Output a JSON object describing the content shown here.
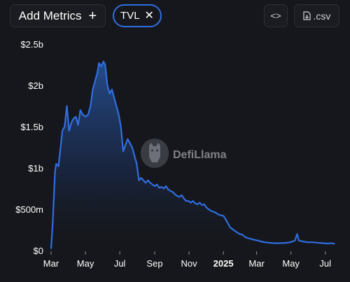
{
  "toolbar": {
    "add_metrics_label": "Add Metrics",
    "add_icon": "plus-icon",
    "chip_label": "TVL",
    "chip_close_icon": "close-icon",
    "embed_icon": "code-icon",
    "csv_label": ".csv",
    "csv_icon": "download-file-icon"
  },
  "watermark": {
    "text": "DefiLlama",
    "icon": "llama-logo"
  },
  "colors": {
    "background": "#16171c",
    "line": "#2f6ee0",
    "chip_border": "#2f6ee0"
  },
  "chart_data": {
    "type": "area",
    "title": "",
    "xlabel": "",
    "ylabel": "",
    "ylim": [
      0,
      2.5
    ],
    "y_unit": "billion USD",
    "y_ticks": [
      0,
      0.5,
      1,
      1.5,
      2,
      2.5
    ],
    "y_tick_labels": [
      "$0",
      "$500m",
      "$1b",
      "$1.5b",
      "$2b",
      "$2.5b"
    ],
    "x_ticks": [
      "2024-03-01",
      "2024-05-01",
      "2024-07-01",
      "2024-09-01",
      "2024-11-01",
      "2025-01-01",
      "2025-03-01",
      "2025-05-01",
      "2025-07-01"
    ],
    "x_tick_labels": [
      "Mar",
      "May",
      "Jul",
      "Sep",
      "Nov",
      "2025",
      "Mar",
      "May",
      "Jul"
    ],
    "x_range": [
      "2024-03-01",
      "2025-07-20"
    ],
    "grid": false,
    "legend": "none",
    "series": [
      {
        "points": [
          [
            "2024-03-01",
            0.02
          ],
          [
            "2024-03-04",
            0.35
          ],
          [
            "2024-03-08",
            0.95
          ],
          [
            "2024-03-10",
            1.05
          ],
          [
            "2024-03-14",
            1.02
          ],
          [
            "2024-03-17",
            1.2
          ],
          [
            "2024-03-21",
            1.45
          ],
          [
            "2024-03-25",
            1.5
          ],
          [
            "2024-03-29",
            1.75
          ],
          [
            "2024-04-02",
            1.45
          ],
          [
            "2024-04-06",
            1.55
          ],
          [
            "2024-04-10",
            1.6
          ],
          [
            "2024-04-14",
            1.62
          ],
          [
            "2024-04-18",
            1.52
          ],
          [
            "2024-04-22",
            1.7
          ],
          [
            "2024-04-26",
            1.65
          ],
          [
            "2024-05-01",
            1.62
          ],
          [
            "2024-05-06",
            1.65
          ],
          [
            "2024-05-10",
            1.75
          ],
          [
            "2024-05-14",
            1.95
          ],
          [
            "2024-05-18",
            2.05
          ],
          [
            "2024-05-22",
            2.15
          ],
          [
            "2024-05-25",
            2.27
          ],
          [
            "2024-05-29",
            2.23
          ],
          [
            "2024-06-02",
            2.29
          ],
          [
            "2024-06-05",
            2.25
          ],
          [
            "2024-06-09",
            2.0
          ],
          [
            "2024-06-13",
            1.9
          ],
          [
            "2024-06-17",
            1.95
          ],
          [
            "2024-06-21",
            1.85
          ],
          [
            "2024-06-25",
            1.75
          ],
          [
            "2024-06-29",
            1.65
          ],
          [
            "2024-07-03",
            1.5
          ],
          [
            "2024-07-07",
            1.2
          ],
          [
            "2024-07-11",
            1.28
          ],
          [
            "2024-07-15",
            1.35
          ],
          [
            "2024-07-19",
            1.3
          ],
          [
            "2024-07-23",
            1.25
          ],
          [
            "2024-07-27",
            1.15
          ],
          [
            "2024-07-31",
            1.05
          ],
          [
            "2024-08-04",
            0.85
          ],
          [
            "2024-08-08",
            0.88
          ],
          [
            "2024-08-12",
            0.85
          ],
          [
            "2024-08-16",
            0.82
          ],
          [
            "2024-08-20",
            0.85
          ],
          [
            "2024-08-24",
            0.82
          ],
          [
            "2024-08-28",
            0.8
          ],
          [
            "2024-09-01",
            0.78
          ],
          [
            "2024-09-05",
            0.8
          ],
          [
            "2024-09-09",
            0.76
          ],
          [
            "2024-09-13",
            0.77
          ],
          [
            "2024-09-17",
            0.75
          ],
          [
            "2024-09-21",
            0.78
          ],
          [
            "2024-09-25",
            0.74
          ],
          [
            "2024-09-29",
            0.72
          ],
          [
            "2024-10-03",
            0.71
          ],
          [
            "2024-10-07",
            0.68
          ],
          [
            "2024-10-11",
            0.66
          ],
          [
            "2024-10-15",
            0.65
          ],
          [
            "2024-10-19",
            0.67
          ],
          [
            "2024-10-23",
            0.63
          ],
          [
            "2024-10-27",
            0.6
          ],
          [
            "2024-10-31",
            0.6
          ],
          [
            "2024-11-04",
            0.58
          ],
          [
            "2024-11-08",
            0.6
          ],
          [
            "2024-11-12",
            0.57
          ],
          [
            "2024-11-16",
            0.56
          ],
          [
            "2024-11-20",
            0.58
          ],
          [
            "2024-11-24",
            0.55
          ],
          [
            "2024-11-28",
            0.56
          ],
          [
            "2024-12-02",
            0.52
          ],
          [
            "2024-12-06",
            0.5
          ],
          [
            "2024-12-10",
            0.48
          ],
          [
            "2024-12-14",
            0.47
          ],
          [
            "2024-12-18",
            0.46
          ],
          [
            "2024-12-22",
            0.44
          ],
          [
            "2024-12-26",
            0.43
          ],
          [
            "2025-01-01",
            0.42
          ],
          [
            "2025-01-05",
            0.38
          ],
          [
            "2025-01-09",
            0.33
          ],
          [
            "2025-01-13",
            0.28
          ],
          [
            "2025-01-17",
            0.26
          ],
          [
            "2025-01-21",
            0.24
          ],
          [
            "2025-01-25",
            0.22
          ],
          [
            "2025-01-30",
            0.2
          ],
          [
            "2025-02-04",
            0.19
          ],
          [
            "2025-02-09",
            0.16
          ],
          [
            "2025-02-14",
            0.15
          ],
          [
            "2025-02-19",
            0.14
          ],
          [
            "2025-02-25",
            0.13
          ],
          [
            "2025-03-03",
            0.12
          ],
          [
            "2025-03-09",
            0.11
          ],
          [
            "2025-03-15",
            0.1
          ],
          [
            "2025-03-22",
            0.095
          ],
          [
            "2025-03-30",
            0.09
          ],
          [
            "2025-04-06",
            0.088
          ],
          [
            "2025-04-14",
            0.09
          ],
          [
            "2025-04-22",
            0.092
          ],
          [
            "2025-04-30",
            0.1
          ],
          [
            "2025-05-08",
            0.12
          ],
          [
            "2025-05-12",
            0.2
          ],
          [
            "2025-05-15",
            0.12
          ],
          [
            "2025-05-22",
            0.11
          ],
          [
            "2025-05-30",
            0.1
          ],
          [
            "2025-06-08",
            0.1
          ],
          [
            "2025-06-16",
            0.095
          ],
          [
            "2025-06-25",
            0.09
          ],
          [
            "2025-07-05",
            0.085
          ],
          [
            "2025-07-12",
            0.088
          ],
          [
            "2025-07-18",
            0.08
          ]
        ]
      }
    ]
  }
}
